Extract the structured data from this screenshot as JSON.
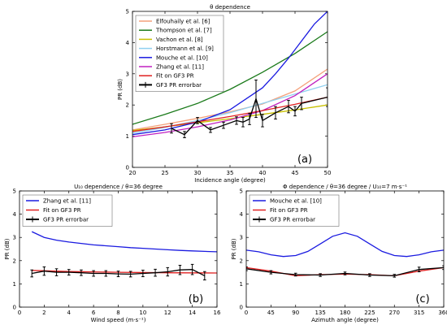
{
  "chart_data": [
    {
      "type": "line",
      "title": "θ dependence",
      "xlabel": "Incidence angle (degree)",
      "ylabel": "PR (dB)",
      "panel_label": "(a)",
      "xlim": [
        20,
        50
      ],
      "ylim": [
        0,
        5
      ],
      "xticks": [
        "20",
        "25",
        "30",
        "35",
        "40",
        "45",
        "50"
      ],
      "yticks": [
        "0",
        "1",
        "2",
        "3",
        "4",
        "5"
      ],
      "legend_position": "top-left",
      "series": [
        {
          "name": "Elfouhaily et al. [6]",
          "color": "#f4a07a",
          "x": [
            20,
            25,
            30,
            35,
            40,
            45,
            50
          ],
          "y": [
            1.2,
            1.38,
            1.57,
            1.78,
            2.03,
            2.45,
            3.15
          ]
        },
        {
          "name": "Thompson et al. [7]",
          "color": "#1a7a1a",
          "x": [
            20,
            25,
            30,
            35,
            40,
            45,
            50
          ],
          "y": [
            1.38,
            1.7,
            2.05,
            2.5,
            3.05,
            3.65,
            4.35
          ]
        },
        {
          "name": "Vachon et al. [8]",
          "color": "#c8c000",
          "x": [
            20,
            25,
            30,
            35,
            40,
            45,
            50
          ],
          "y": [
            1.18,
            1.3,
            1.43,
            1.56,
            1.7,
            1.84,
            2.0
          ]
        },
        {
          "name": "Horstmann et al. [9]",
          "color": "#8fd0f0",
          "x": [
            20,
            25,
            30,
            35,
            40,
            45,
            50
          ],
          "y": [
            1.1,
            1.28,
            1.5,
            1.75,
            2.05,
            2.35,
            2.65
          ]
        },
        {
          "name": "Mouche et al. [10]",
          "color": "#1a1ae0",
          "x": [
            20,
            25,
            30,
            35,
            40,
            42,
            44,
            46,
            48,
            50
          ],
          "y": [
            1.05,
            1.2,
            1.45,
            1.85,
            2.55,
            3.0,
            3.5,
            4.05,
            4.6,
            5.0
          ]
        },
        {
          "name": "Zhang et al. [11]",
          "color": "#c020c0",
          "x": [
            20,
            25,
            30,
            35,
            40,
            45,
            50
          ],
          "y": [
            0.98,
            1.12,
            1.3,
            1.52,
            1.82,
            2.3,
            3.0
          ]
        },
        {
          "name": "Fit on GF3 PR",
          "color": "#e02020",
          "x": [
            20,
            25,
            30,
            35,
            40,
            45,
            50
          ],
          "y": [
            1.15,
            1.3,
            1.46,
            1.63,
            1.82,
            2.02,
            2.25
          ]
        },
        {
          "name": "GF3 PR errorbar",
          "color": "#000000",
          "x": [
            26,
            28,
            30,
            32,
            34,
            36,
            37,
            38,
            39,
            40,
            42,
            44,
            45,
            46,
            50
          ],
          "y": [
            1.25,
            1.05,
            1.5,
            1.2,
            1.35,
            1.5,
            1.45,
            1.55,
            2.2,
            1.5,
            1.75,
            1.95,
            1.8,
            2.05,
            2.25
          ],
          "err": [
            0.15,
            0.1,
            0.1,
            0.08,
            0.1,
            0.12,
            0.15,
            0.18,
            0.6,
            0.2,
            0.2,
            0.2,
            0.15,
            0.2,
            0.3
          ]
        }
      ]
    },
    {
      "type": "line",
      "title": "U₁₀ dependence / θ=36 degree",
      "xlabel": "Wind speed (m·s⁻¹)",
      "ylabel": "PR (dB)",
      "panel_label": "(b)",
      "xlim": [
        0,
        16
      ],
      "ylim": [
        0,
        5
      ],
      "xticks": [
        "0",
        "2",
        "4",
        "6",
        "8",
        "10",
        "12",
        "14",
        "16"
      ],
      "yticks": [
        "0",
        "1",
        "2",
        "3",
        "4",
        "5"
      ],
      "legend_position": "top-left",
      "series": [
        {
          "name": "Zhang et al. [11]",
          "color": "#1a1ae0",
          "x": [
            1,
            2,
            3,
            4,
            5,
            6,
            7,
            8,
            9,
            10,
            11,
            12,
            13,
            14,
            15,
            16
          ],
          "y": [
            3.25,
            3.0,
            2.88,
            2.8,
            2.74,
            2.68,
            2.64,
            2.6,
            2.56,
            2.53,
            2.5,
            2.47,
            2.44,
            2.42,
            2.4,
            2.38
          ]
        },
        {
          "name": "Fit on GF3 PR",
          "color": "#e02020",
          "x": [
            1,
            4,
            8,
            12,
            16
          ],
          "y": [
            1.58,
            1.53,
            1.5,
            1.48,
            1.47
          ]
        },
        {
          "name": "GF3 PR errorbar",
          "color": "#000000",
          "x": [
            1,
            2,
            3,
            4,
            5,
            6,
            7,
            8,
            9,
            10,
            11,
            12,
            13,
            14,
            15
          ],
          "y": [
            1.45,
            1.55,
            1.5,
            1.5,
            1.48,
            1.45,
            1.45,
            1.43,
            1.42,
            1.45,
            1.48,
            1.52,
            1.6,
            1.62,
            1.35
          ],
          "err": [
            0.15,
            0.18,
            0.15,
            0.12,
            0.12,
            0.12,
            0.12,
            0.12,
            0.12,
            0.14,
            0.15,
            0.18,
            0.2,
            0.22,
            0.18
          ]
        }
      ]
    },
    {
      "type": "line",
      "title": "Φ dependence / θ=36 degree / U₁₀=7 m·s⁻¹",
      "xlabel": "Azimuth angle (degree)",
      "ylabel": "PR (dB)",
      "panel_label": "(c)",
      "xlim": [
        0,
        360
      ],
      "ylim": [
        0,
        5
      ],
      "xticks": [
        "0",
        "45",
        "90",
        "135",
        "180",
        "225",
        "270",
        "315",
        "360"
      ],
      "yticks": [
        "0",
        "1",
        "2",
        "3",
        "4",
        "5"
      ],
      "legend_position": "top-left",
      "series": [
        {
          "name": "Mouche et al. [10]",
          "color": "#1a1ae0",
          "x": [
            0,
            22.5,
            45,
            67.5,
            90,
            112.5,
            135,
            157.5,
            180,
            202.5,
            225,
            247.5,
            270,
            292.5,
            315,
            337.5,
            360
          ],
          "y": [
            2.45,
            2.38,
            2.25,
            2.18,
            2.22,
            2.4,
            2.72,
            3.05,
            3.2,
            3.05,
            2.72,
            2.4,
            2.22,
            2.18,
            2.25,
            2.38,
            2.45
          ]
        },
        {
          "name": "Fit on GF3 PR",
          "color": "#e02020",
          "x": [
            0,
            45,
            90,
            135,
            180,
            225,
            270,
            315,
            360
          ],
          "y": [
            1.7,
            1.55,
            1.35,
            1.4,
            1.42,
            1.4,
            1.35,
            1.55,
            1.7
          ]
        },
        {
          "name": "GF3 PR errorbar",
          "color": "#000000",
          "x": [
            0,
            45,
            90,
            135,
            180,
            225,
            270,
            315,
            360
          ],
          "y": [
            1.65,
            1.5,
            1.4,
            1.38,
            1.45,
            1.38,
            1.35,
            1.62,
            1.7
          ],
          "err": [
            0.08,
            0.07,
            0.06,
            0.06,
            0.06,
            0.06,
            0.06,
            0.1,
            0.08
          ]
        }
      ]
    }
  ]
}
